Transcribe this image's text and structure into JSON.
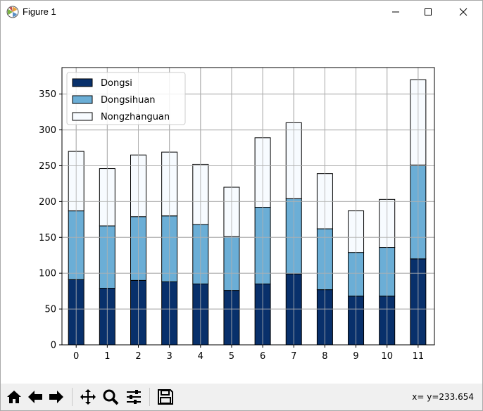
{
  "window": {
    "title": "Figure 1"
  },
  "toolbar": {
    "buttons": [
      {
        "name": "home-button",
        "icon": "home-icon"
      },
      {
        "name": "back-button",
        "icon": "arrow-left-icon"
      },
      {
        "name": "forward-button",
        "icon": "arrow-right-icon"
      },
      {
        "name": "pan-button",
        "icon": "move-icon"
      },
      {
        "name": "zoom-button",
        "icon": "magnifier-icon"
      },
      {
        "name": "configure-subplots-button",
        "icon": "sliders-icon"
      },
      {
        "name": "save-button",
        "icon": "floppy-disk-icon"
      }
    ],
    "coords_text": "x= y=233.654"
  },
  "chart_data": {
    "type": "bar",
    "stacked": true,
    "title": "",
    "xlabel": "",
    "ylabel": "",
    "categories": [
      "0",
      "1",
      "2",
      "3",
      "4",
      "5",
      "6",
      "7",
      "8",
      "9",
      "10",
      "11"
    ],
    "series": [
      {
        "name": "Dongsi",
        "color": "#08306b",
        "values": [
          91,
          79,
          90,
          88,
          85,
          76,
          85,
          99,
          77,
          68,
          68,
          120
        ]
      },
      {
        "name": "Dongsihuan",
        "color": "#6baed6",
        "values": [
          96,
          87,
          89,
          92,
          83,
          75,
          107,
          105,
          85,
          61,
          68,
          131
        ]
      },
      {
        "name": "Nongzhanguan",
        "color": "#f7fbff",
        "values": [
          83,
          80,
          86,
          89,
          84,
          69,
          97,
          106,
          77,
          58,
          67,
          119
        ]
      }
    ],
    "ylim": [
      0,
      387
    ],
    "yticks": [
      0,
      50,
      100,
      150,
      200,
      250,
      300,
      350
    ],
    "grid": true,
    "legend": "top-left"
  }
}
